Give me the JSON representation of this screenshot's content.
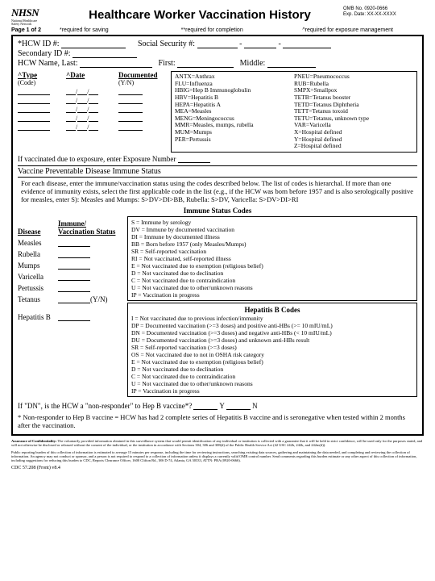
{
  "logo": {
    "main": "NHSN",
    "sub1": "National Healthcare",
    "sub2": "Safety Network"
  },
  "title": "Healthcare Worker Vaccination History",
  "omb": {
    "no": "OMB No. 0920-0666",
    "exp": "Exp. Date: XX-XX-XXXX"
  },
  "page": "Page 1 of 2",
  "req": {
    "a": "*required for saving",
    "b": "**required for completion",
    "c": "^required for exposure management"
  },
  "ids": {
    "hcw": "*HCW ID #:",
    "ssn": "Social Security #:",
    "sec": "Secondary ID #:",
    "name": "HCW Name, Last:",
    "first": "First:",
    "mid": "Middle:"
  },
  "tt": {
    "type": "^Type",
    "code": "(Code)",
    "date": "^Date",
    "doc": "Documented",
    "yn": "(Y/N)"
  },
  "vac_codes_l": [
    "ANTX=Anthrax",
    "FLU=Influenza",
    "HBIG=Hep B Immunoglobulin",
    "HBV=Hepatitis B",
    "HEPA=Hepatitis A",
    "MEA=Measles",
    "MENG=Meningococcus",
    "MMR=Measles, mumps, rubella",
    "MUM=Mumps",
    "PER=Pertussis"
  ],
  "vac_codes_r": [
    "PNEU=Pneumococcus",
    "RUB=Rubella",
    "SMPX=Smallpox",
    "TETB=Tetanus booster",
    "TETD=Tetanus Diphtheria",
    "TETT=Tetanus toxoid",
    "TETU=Tetanus, unknown type",
    "VAR=Varicella",
    "X=Hospital defined",
    "Y=Hospital defined",
    "Z=Hospital defined"
  ],
  "exp": "If vaccinated due to exposure, enter Exposure Number",
  "sect": "Vaccine Preventable Disease Immune Status",
  "sect_body": "For each disease, enter the immune/vaccination status using the codes described below. The list of codes is hierarchal. If more than one evidence of immunity exists, select the first applicable code in the list (e.g., if the HCW was born before 1957 and is also serologically positive for measles, enter S): Measles and Mumps: S>DV>DI>BB, Rubella: S>DV, Varicella: S>DV>DI>RI",
  "imm_title": "Immune Status Codes",
  "dis_head1": "Disease",
  "dis_head2_a": "Immune/",
  "dis_head2_b": "Vaccination Status",
  "diseases": [
    "Measles",
    "Rubella",
    "Mumps",
    "Varicella",
    "Pertussis",
    "Tetanus",
    "Hepatitis B"
  ],
  "yn": "(Y/N)",
  "imm_codes": [
    "S = Immune by serology",
    "DV = Immune by documented vaccination",
    "DI = Immune by documented illness",
    "BB = Born before 1957 (only Measles/Mumps)",
    "SR = Self-reported vaccination",
    "RI = Not vaccinated, self-reported illness",
    "E = Not vaccinated due to exemption (religious belief)",
    "D = Not vaccinated due to declination",
    "C = Not vaccinated due to contraindication",
    "U = Not vaccinated due to other/unknown reasons",
    "IP = Vaccination in progress"
  ],
  "hepb_title": "Hepatitis B Codes",
  "hepb_codes": [
    "I = Not vaccinated due to previous infection/immunity",
    "DP = Documented vaccination (>=3 doses) and positive anti-HBs (>= 10 mIU/mL)",
    "DN = Documented vaccination (>=3 doses) and negative anti-HBs (< 10 mIU/mL)",
    "DU = Documented vaccination (>=3 doses) and unknown anti-HBs result",
    "SR = Self-reported vaccination (>=3 doses)",
    "OS = Not vaccinated due to not in OSHA risk category",
    "E = Not vaccinated due to exemption (religious belief)",
    "D = Not vaccinated due to declination",
    "C = Not vaccinated due to contraindication",
    "U = Not vaccinated due to other/unknown reasons",
    "IP = Vaccination in progress"
  ],
  "dn1": "If \"DN\", is the HCW a \"non-responder\" to Hep B vaccine*?",
  "dn_y": "Y",
  "dn_n": "N",
  "dn2": "* Non-responder to Hep B vaccine = HCW has had 2 complete series of Hepatitis B vaccine and is seronegative when tested within 2 months after the vaccination.",
  "foot1": "Assurance of Confidentiality: The voluntarily provided information obtained in this surveillance system that would permit identification of any individual or institution is collected with a guarantee that it will be held in strict confidence, will be used only for the purposes stated, and will not otherwise be disclosed or released without the consent of the individual, or the institution in accordance with Sections 304, 306 and 308(d) of the Public Health Service Act (42 USC 242b, 242k, and 242m(d)).",
  "foot2": "Public reporting burden of this collection of information is estimated to average 15 minutes per response, including the time for reviewing instructions, searching existing data sources, gathering and maintaining the data needed, and completing and reviewing the collection of information. An agency may not conduct or sponsor, and a person is not required to respond to a collection of information unless it displays a currently valid OMB control number. Send comments regarding this burden estimate or any other aspect of this collection of information, including suggestions for reducing this burden to CDC, Reports Clearance Officer, 1600 Clifton Rd., MS D-74, Atlanta, GA 30333, ATTN: PRA (0920-0666).",
  "cdc": "CDC 57.208 (Front) v8.4"
}
